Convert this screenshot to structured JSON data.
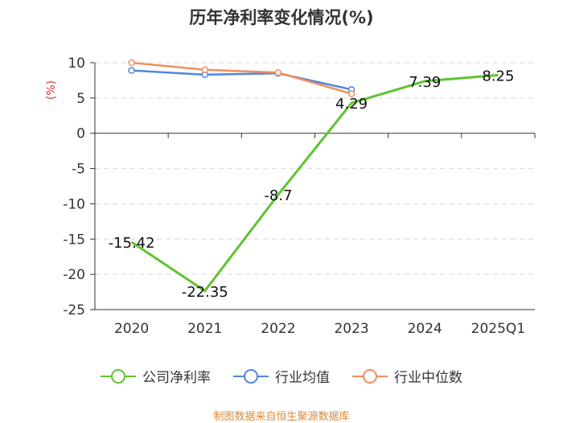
{
  "title": "历年净利率变化情况(%)",
  "source": "制图数据来自恒生聚源数据库",
  "chart_data": {
    "type": "line",
    "title": "历年净利率变化情况(%)",
    "ylabel": "(%)",
    "xlabel": "",
    "categories": [
      "2020",
      "2021",
      "2022",
      "2023",
      "2024",
      "2025Q1"
    ],
    "ylim": [
      -25,
      10
    ],
    "yticks": [
      10,
      5,
      0,
      -5,
      -10,
      -15,
      -20,
      -25
    ],
    "grid": true,
    "legend_position": "bottom",
    "series": [
      {
        "name": "公司净利率",
        "color": "#5ec42f",
        "values": [
          -15.42,
          -22.35,
          -8.7,
          4.29,
          7.39,
          8.25
        ],
        "labels": [
          "-15.42",
          "-22.35",
          "-8.7",
          "4.29",
          "7.39",
          "8.25"
        ]
      },
      {
        "name": "行业均值",
        "color": "#4f86e0",
        "values": [
          8.9,
          8.3,
          8.5,
          6.2,
          null,
          null
        ]
      },
      {
        "name": "行业中位数",
        "color": "#f28e5c",
        "values": [
          10.0,
          9.0,
          8.6,
          5.6,
          null,
          null
        ]
      }
    ]
  }
}
